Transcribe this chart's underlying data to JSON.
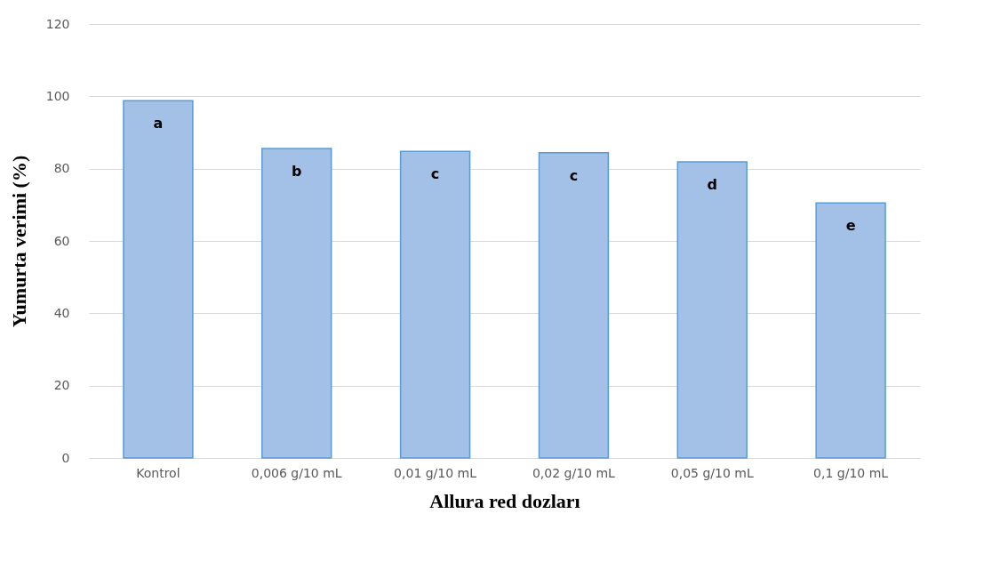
{
  "chart_data": {
    "type": "bar",
    "xlabel": "Allura red dozları",
    "ylabel": "Yumurta verimi (%)",
    "categories": [
      "Kontrol",
      "0,006 g/10 mL",
      "0,01 g/10 mL",
      "0,02 g/10 mL",
      "0,05 g/10 mL",
      "0,1 g/10 mL"
    ],
    "values": [
      98.8,
      85.6,
      84.8,
      84.4,
      81.9,
      70.5
    ],
    "color": "#a3c1e7",
    "ylim": [
      0,
      120
    ],
    "yticks": [
      0,
      20,
      40,
      60,
      80,
      100,
      120
    ],
    "grid": "y",
    "annotations": [
      "a",
      "b",
      "c",
      "c",
      "d",
      "e"
    ]
  }
}
